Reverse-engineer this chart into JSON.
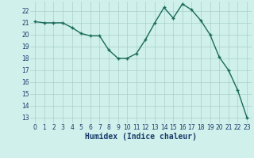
{
  "x": [
    0,
    1,
    2,
    3,
    4,
    5,
    6,
    7,
    8,
    9,
    10,
    11,
    12,
    13,
    14,
    15,
    16,
    17,
    18,
    19,
    20,
    21,
    22,
    23
  ],
  "y": [
    21.1,
    21.0,
    21.0,
    21.0,
    20.6,
    20.1,
    19.9,
    19.9,
    18.7,
    18.0,
    18.0,
    18.4,
    19.6,
    21.0,
    22.3,
    21.4,
    22.6,
    22.1,
    21.2,
    20.0,
    18.1,
    17.0,
    15.3,
    13.0
  ],
  "line_color": "#1a6b5a",
  "marker": "+",
  "marker_size": 3,
  "line_width": 1.0,
  "xlabel": "Humidex (Indice chaleur)",
  "xlim": [
    -0.5,
    23.5
  ],
  "ylim": [
    12.5,
    22.8
  ],
  "yticks": [
    13,
    14,
    15,
    16,
    17,
    18,
    19,
    20,
    21,
    22
  ],
  "xticks": [
    0,
    1,
    2,
    3,
    4,
    5,
    6,
    7,
    8,
    9,
    10,
    11,
    12,
    13,
    14,
    15,
    16,
    17,
    18,
    19,
    20,
    21,
    22,
    23
  ],
  "background_color": "#cff0eb",
  "grid_color": "#aacfca",
  "tick_fontsize": 5.5,
  "xlabel_fontsize": 7
}
